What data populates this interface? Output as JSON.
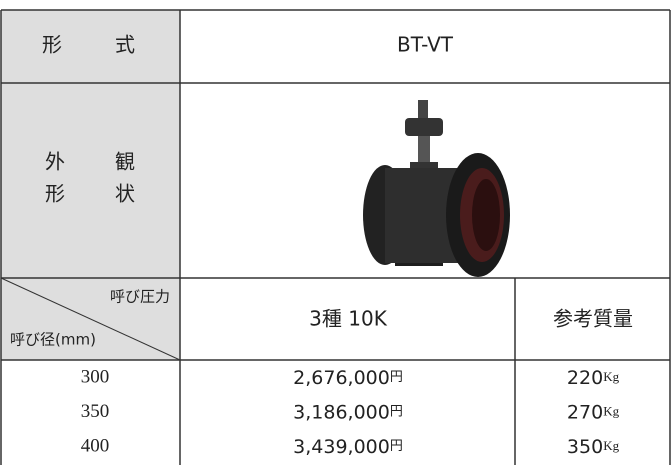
{
  "table": {
    "model_label": [
      "形",
      "式"
    ],
    "model": "BT-VT",
    "appearance_label": [
      [
        "外",
        "観"
      ],
      [
        "形",
        "状"
      ]
    ],
    "header": {
      "pressure": "呼び圧力",
      "diameter": "呼び径(mm)",
      "class": "3種 10K",
      "weight": "参考質量"
    },
    "rows": [
      {
        "size": "300",
        "price": "2,676,000",
        "price_unit": "円",
        "weight": "220",
        "weight_unit": "Kg"
      },
      {
        "size": "350",
        "price": "3,186,000",
        "price_unit": "円",
        "weight": "270",
        "weight_unit": "Kg"
      },
      {
        "size": "400",
        "price": "3,439,000",
        "price_unit": "円",
        "weight": "350",
        "weight_unit": "Kg"
      }
    ]
  }
}
